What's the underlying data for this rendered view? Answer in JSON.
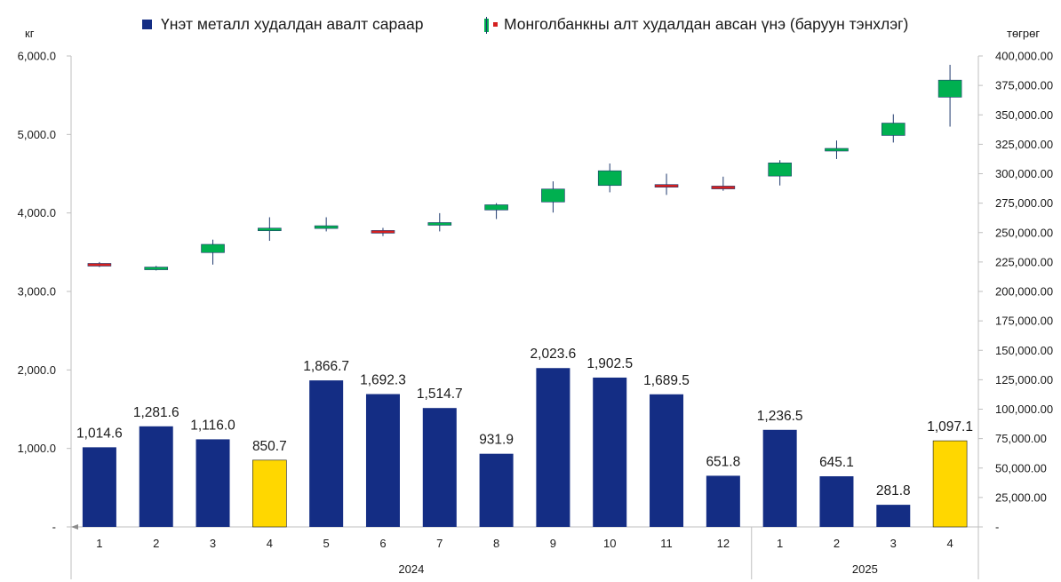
{
  "legend": {
    "bars_label": "Үнэт металл худалдан авалт сараар",
    "candles_label": "Монголбанкны алт худалдан авсан үнэ (баруун тэнхлэг)"
  },
  "units": {
    "left": "кг",
    "right": "төгрөг"
  },
  "colors": {
    "bar": "#142d84",
    "bar_highlight": "#ffd700",
    "candle_up": "#00b050",
    "candle_down": "#d42020",
    "wick": "#1f3a6e"
  },
  "chart_data": {
    "type": "bar+candlestick",
    "categories": [
      "1",
      "2",
      "3",
      "4",
      "5",
      "6",
      "7",
      "8",
      "9",
      "10",
      "11",
      "12",
      "1",
      "2",
      "3",
      "4"
    ],
    "groups": [
      {
        "label": "2024",
        "count": 12
      },
      {
        "label": "2025",
        "count": 4
      }
    ],
    "series": [
      {
        "name": "Үнэт металл худалдан авалт сараар",
        "type": "bar",
        "axis": "left",
        "values": [
          1014.6,
          1281.6,
          1116.0,
          850.7,
          1866.7,
          1692.3,
          1514.7,
          931.9,
          2023.6,
          1902.5,
          1689.5,
          651.8,
          1236.5,
          645.1,
          281.8,
          1097.1
        ],
        "labels": [
          "1,014.6",
          "1,281.6",
          "1,116.0",
          "850.7",
          "1,866.7",
          "1,692.3",
          "1,514.7",
          "931.9",
          "2,023.6",
          "1,902.5",
          "1,689.5",
          "651.8",
          "1,236.5",
          "645.1",
          "281.8",
          "1,097.1"
        ],
        "highlight": [
          false,
          false,
          false,
          true,
          false,
          false,
          false,
          false,
          false,
          false,
          false,
          false,
          false,
          false,
          false,
          true
        ]
      },
      {
        "name": "Монголбанкны алт худалдан авсан үнэ (баруун тэнхлэг)",
        "type": "candlestick",
        "axis": "right",
        "open": [
          223800,
          219000,
          233000,
          252000,
          253500,
          251800,
          256500,
          269200,
          276000,
          290000,
          290800,
          289500,
          298000,
          319800,
          332500,
          365000
        ],
        "close": [
          222300,
          220700,
          240000,
          253800,
          255800,
          249500,
          258500,
          273600,
          287000,
          302500,
          288600,
          287100,
          309200,
          321500,
          343000,
          379500
        ],
        "high": [
          225000,
          221700,
          244000,
          263000,
          263000,
          254000,
          266500,
          275000,
          293500,
          308700,
          300000,
          297500,
          311500,
          328200,
          350500,
          392500
        ],
        "low": [
          220700,
          217800,
          222800,
          243000,
          251000,
          247000,
          251000,
          261500,
          267000,
          284200,
          282000,
          285500,
          290000,
          312500,
          326500,
          340000
        ]
      }
    ],
    "y_left": {
      "min": 0,
      "max": 6000,
      "step": 1000,
      "ticks": [
        "-",
        "1,000.0",
        "2,000.0",
        "3,000.0",
        "4,000.0",
        "5,000.0",
        "6,000.0"
      ]
    },
    "y_right": {
      "min": 0,
      "max": 400000,
      "step": 25000,
      "ticks": [
        "-",
        "25,000.00",
        "50,000.00",
        "75,000.00",
        "100,000.00",
        "125,000.00",
        "150,000.00",
        "175,000.00",
        "200,000.00",
        "225,000.00",
        "250,000.00",
        "275,000.00",
        "300,000.00",
        "325,000.00",
        "350,000.00",
        "375,000.00",
        "400,000.00"
      ]
    },
    "grid": false,
    "legend_position": "top"
  }
}
